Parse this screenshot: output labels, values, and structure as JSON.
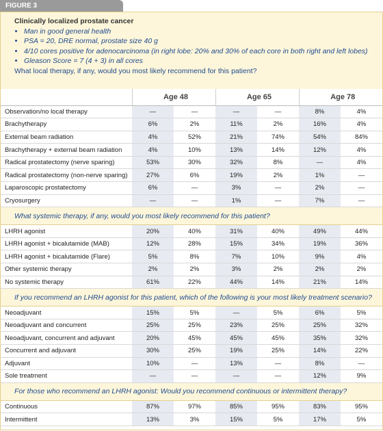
{
  "figure_label": "FIGURE 3",
  "case": {
    "title": "Clinically localized prostate cancer",
    "bullets": [
      "Man in good general health",
      "PSA = 20, DRE normal, prostate size 40 g",
      "4/10 cores positive for adenocarcinoma (in right lobe: 20% and 30% of each core in both right and left lobes)",
      "Gleason Score = 7 (4 + 3) in all cores"
    ]
  },
  "table": {
    "column_groups": [
      "Age 48",
      "Age 65",
      "Age 78"
    ],
    "sections": [
      {
        "question": "What local therapy, if any, would you most likely recommend for this patient?",
        "rows": [
          {
            "label": "Observation/no local therapy",
            "cells": [
              "—",
              "—",
              "—",
              "—",
              "8%",
              "4%"
            ]
          },
          {
            "label": "Brachytherapy",
            "cells": [
              "6%",
              "2%",
              "11%",
              "2%",
              "16%",
              "4%"
            ]
          },
          {
            "label": "External beam radiation",
            "cells": [
              "4%",
              "52%",
              "21%",
              "74%",
              "54%",
              "84%"
            ]
          },
          {
            "label": "Brachytherapy + external beam radiation",
            "cells": [
              "4%",
              "10%",
              "13%",
              "14%",
              "12%",
              "4%"
            ]
          },
          {
            "label": "Radical prostatectomy (nerve sparing)",
            "cells": [
              "53%",
              "30%",
              "32%",
              "8%",
              "—",
              "4%"
            ]
          },
          {
            "label": "Radical prostatectomy (non-nerve sparing)",
            "cells": [
              "27%",
              "6%",
              "19%",
              "2%",
              "1%",
              "—"
            ]
          },
          {
            "label": "Laparoscopic prostatectomy",
            "cells": [
              "6%",
              "—",
              "3%",
              "—",
              "2%",
              "—"
            ]
          },
          {
            "label": "Cryosurgery",
            "cells": [
              "—",
              "—",
              "1%",
              "—",
              "7%",
              "—"
            ]
          }
        ]
      },
      {
        "question": "What systemic therapy, if any, would you most likely recommend for this patient?",
        "rows": [
          {
            "label": "LHRH agonist",
            "cells": [
              "20%",
              "40%",
              "31%",
              "40%",
              "49%",
              "44%"
            ]
          },
          {
            "label": "LHRH agonist + bicalutamide (MAB)",
            "cells": [
              "12%",
              "28%",
              "15%",
              "34%",
              "19%",
              "36%"
            ]
          },
          {
            "label": "LHRH agonist + bicalutamide (Flare)",
            "cells": [
              "5%",
              "8%",
              "7%",
              "10%",
              "9%",
              "4%"
            ]
          },
          {
            "label": "Other systemic therapy",
            "cells": [
              "2%",
              "2%",
              "3%",
              "2%",
              "2%",
              "2%"
            ]
          },
          {
            "label": "No systemic therapy",
            "cells": [
              "61%",
              "22%",
              "44%",
              "14%",
              "21%",
              "14%"
            ]
          }
        ]
      },
      {
        "question": "If you recommend an LHRH agonist for this patient, which of the following is your most likely treatment scenario?",
        "rows": [
          {
            "label": "Neoadjuvant",
            "cells": [
              "15%",
              "5%",
              "—",
              "5%",
              "6%",
              "5%"
            ]
          },
          {
            "label": "Neoadjuvant and concurrent",
            "cells": [
              "25%",
              "25%",
              "23%",
              "25%",
              "25%",
              "32%"
            ]
          },
          {
            "label": "Neoadjuvant, concurrent and adjuvant",
            "cells": [
              "20%",
              "45%",
              "45%",
              "45%",
              "35%",
              "32%"
            ]
          },
          {
            "label": "Concurrent and adjuvant",
            "cells": [
              "30%",
              "25%",
              "19%",
              "25%",
              "14%",
              "22%"
            ]
          },
          {
            "label": "Adjuvant",
            "cells": [
              "10%",
              "—",
              "13%",
              "—",
              "8%",
              "—"
            ]
          },
          {
            "label": "Sole treatment",
            "cells": [
              "—",
              "—",
              "—",
              "—",
              "12%",
              "9%"
            ]
          }
        ]
      },
      {
        "question": "For those who recommend an LHRH agonist: Would you recommend continuous or intermittent therapy?",
        "rows": [
          {
            "label": "Continuous",
            "cells": [
              "87%",
              "97%",
              "85%",
              "95%",
              "83%",
              "95%"
            ]
          },
          {
            "label": "Intermittent",
            "cells": [
              "13%",
              "3%",
              "15%",
              "5%",
              "17%",
              "5%"
            ]
          }
        ]
      }
    ]
  }
}
